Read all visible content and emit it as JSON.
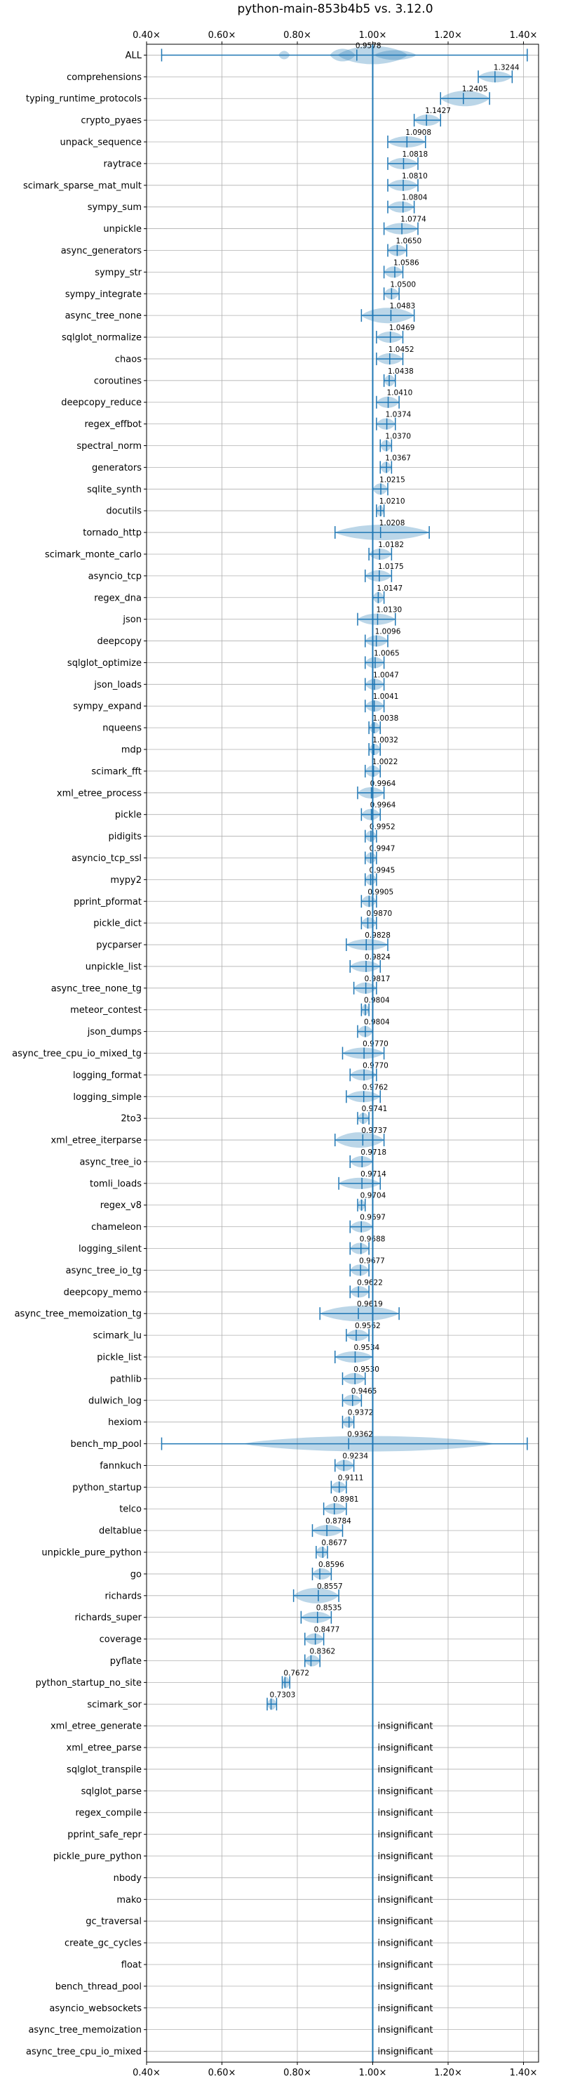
{
  "chart_data": {
    "type": "violin",
    "title": "python-main-853b4b5 vs. 3.12.0",
    "xlim": [
      0.4,
      1.44
    ],
    "xticks": [
      0.4,
      0.6,
      0.8,
      1.0,
      1.2,
      1.4
    ],
    "xtick_labels": [
      "0.40×",
      "0.60×",
      "0.80×",
      "1.00×",
      "1.20×",
      "1.40×"
    ],
    "reference_line": 1.0,
    "insignificant_text": "insignificant",
    "rows": [
      {
        "name": "ALL",
        "value": 0.9578,
        "label": "0.9578",
        "min": 0.44,
        "max": 1.41,
        "shape": "all"
      },
      {
        "name": "comprehensions",
        "value": 1.3244,
        "label": "1.3244",
        "min": 1.28,
        "max": 1.37
      },
      {
        "name": "typing_runtime_protocols",
        "value": 1.2405,
        "label": "1.2405",
        "min": 1.18,
        "max": 1.31
      },
      {
        "name": "crypto_pyaes",
        "value": 1.1427,
        "label": "1.1427",
        "min": 1.11,
        "max": 1.18
      },
      {
        "name": "unpack_sequence",
        "value": 1.0908,
        "label": "1.0908",
        "min": 1.04,
        "max": 1.14
      },
      {
        "name": "raytrace",
        "value": 1.0818,
        "label": "1.0818",
        "min": 1.04,
        "max": 1.12
      },
      {
        "name": "scimark_sparse_mat_mult",
        "value": 1.081,
        "label": "1.0810",
        "min": 1.04,
        "max": 1.12
      },
      {
        "name": "sympy_sum",
        "value": 1.0804,
        "label": "1.0804",
        "min": 1.04,
        "max": 1.11
      },
      {
        "name": "unpickle",
        "value": 1.0774,
        "label": "1.0774",
        "min": 1.03,
        "max": 1.12
      },
      {
        "name": "async_generators",
        "value": 1.065,
        "label": "1.0650",
        "min": 1.04,
        "max": 1.09
      },
      {
        "name": "sympy_str",
        "value": 1.0586,
        "label": "1.0586",
        "min": 1.03,
        "max": 1.08
      },
      {
        "name": "sympy_integrate",
        "value": 1.05,
        "label": "1.0500",
        "min": 1.03,
        "max": 1.07
      },
      {
        "name": "async_tree_none",
        "value": 1.0483,
        "label": "1.0483",
        "min": 0.97,
        "max": 1.11
      },
      {
        "name": "sqlglot_normalize",
        "value": 1.0469,
        "label": "1.0469",
        "min": 1.01,
        "max": 1.08
      },
      {
        "name": "chaos",
        "value": 1.0452,
        "label": "1.0452",
        "min": 1.01,
        "max": 1.08
      },
      {
        "name": "coroutines",
        "value": 1.0438,
        "label": "1.0438",
        "min": 1.03,
        "max": 1.06
      },
      {
        "name": "deepcopy_reduce",
        "value": 1.041,
        "label": "1.0410",
        "min": 1.01,
        "max": 1.07
      },
      {
        "name": "regex_effbot",
        "value": 1.0374,
        "label": "1.0374",
        "min": 1.01,
        "max": 1.06
      },
      {
        "name": "spectral_norm",
        "value": 1.037,
        "label": "1.0370",
        "min": 1.02,
        "max": 1.05
      },
      {
        "name": "generators",
        "value": 1.0367,
        "label": "1.0367",
        "min": 1.02,
        "max": 1.05
      },
      {
        "name": "sqlite_synth",
        "value": 1.0215,
        "label": "1.0215",
        "min": 1.0,
        "max": 1.04
      },
      {
        "name": "docutils",
        "value": 1.021,
        "label": "1.0210",
        "min": 1.01,
        "max": 1.03
      },
      {
        "name": "tornado_http",
        "value": 1.0208,
        "label": "1.0208",
        "min": 0.9,
        "max": 1.15
      },
      {
        "name": "scimark_monte_carlo",
        "value": 1.0182,
        "label": "1.0182",
        "min": 0.99,
        "max": 1.05
      },
      {
        "name": "asyncio_tcp",
        "value": 1.0175,
        "label": "1.0175",
        "min": 0.98,
        "max": 1.05
      },
      {
        "name": "regex_dna",
        "value": 1.0147,
        "label": "1.0147",
        "min": 1.0,
        "max": 1.03
      },
      {
        "name": "json",
        "value": 1.013,
        "label": "1.0130",
        "min": 0.96,
        "max": 1.06
      },
      {
        "name": "deepcopy",
        "value": 1.0096,
        "label": "1.0096",
        "min": 0.98,
        "max": 1.04
      },
      {
        "name": "sqlglot_optimize",
        "value": 1.0065,
        "label": "1.0065",
        "min": 0.98,
        "max": 1.03
      },
      {
        "name": "json_loads",
        "value": 1.0047,
        "label": "1.0047",
        "min": 0.98,
        "max": 1.03
      },
      {
        "name": "sympy_expand",
        "value": 1.0041,
        "label": "1.0041",
        "min": 0.98,
        "max": 1.03
      },
      {
        "name": "nqueens",
        "value": 1.0038,
        "label": "1.0038",
        "min": 0.99,
        "max": 1.02
      },
      {
        "name": "mdp",
        "value": 1.0032,
        "label": "1.0032",
        "min": 0.99,
        "max": 1.02
      },
      {
        "name": "scimark_fft",
        "value": 1.0022,
        "label": "1.0022",
        "min": 0.98,
        "max": 1.02
      },
      {
        "name": "xml_etree_process",
        "value": 0.9964,
        "label": "0.9964",
        "min": 0.96,
        "max": 1.03
      },
      {
        "name": "pickle",
        "value": 0.9964,
        "label": "0.9964",
        "min": 0.97,
        "max": 1.02
      },
      {
        "name": "pidigits",
        "value": 0.9952,
        "label": "0.9952",
        "min": 0.98,
        "max": 1.01
      },
      {
        "name": "asyncio_tcp_ssl",
        "value": 0.9947,
        "label": "0.9947",
        "min": 0.98,
        "max": 1.01
      },
      {
        "name": "mypy2",
        "value": 0.9945,
        "label": "0.9945",
        "min": 0.98,
        "max": 1.01
      },
      {
        "name": "pprint_pformat",
        "value": 0.9905,
        "label": "0.9905",
        "min": 0.97,
        "max": 1.01
      },
      {
        "name": "pickle_dict",
        "value": 0.987,
        "label": "0.9870",
        "min": 0.97,
        "max": 1.01
      },
      {
        "name": "pycparser",
        "value": 0.9828,
        "label": "0.9828",
        "min": 0.93,
        "max": 1.04
      },
      {
        "name": "unpickle_list",
        "value": 0.9824,
        "label": "0.9824",
        "min": 0.94,
        "max": 1.02
      },
      {
        "name": "async_tree_none_tg",
        "value": 0.9817,
        "label": "0.9817",
        "min": 0.95,
        "max": 1.01
      },
      {
        "name": "meteor_contest",
        "value": 0.9804,
        "label": "0.9804",
        "min": 0.97,
        "max": 0.99
      },
      {
        "name": "json_dumps",
        "value": 0.9804,
        "label": "0.9804",
        "min": 0.96,
        "max": 1.0
      },
      {
        "name": "async_tree_cpu_io_mixed_tg",
        "value": 0.977,
        "label": "0.9770",
        "min": 0.92,
        "max": 1.03
      },
      {
        "name": "logging_format",
        "value": 0.977,
        "label": "0.9770",
        "min": 0.94,
        "max": 1.01
      },
      {
        "name": "logging_simple",
        "value": 0.9762,
        "label": "0.9762",
        "min": 0.93,
        "max": 1.02
      },
      {
        "name": "2to3",
        "value": 0.9741,
        "label": "0.9741",
        "min": 0.96,
        "max": 0.99
      },
      {
        "name": "xml_etree_iterparse",
        "value": 0.9737,
        "label": "0.9737",
        "min": 0.9,
        "max": 1.03
      },
      {
        "name": "async_tree_io",
        "value": 0.9718,
        "label": "0.9718",
        "min": 0.94,
        "max": 1.0
      },
      {
        "name": "tomli_loads",
        "value": 0.9714,
        "label": "0.9714",
        "min": 0.91,
        "max": 1.02
      },
      {
        "name": "regex_v8",
        "value": 0.9704,
        "label": "0.9704",
        "min": 0.96,
        "max": 0.98
      },
      {
        "name": "chameleon",
        "value": 0.9697,
        "label": "0.9697",
        "min": 0.94,
        "max": 1.0
      },
      {
        "name": "logging_silent",
        "value": 0.9688,
        "label": "0.9688",
        "min": 0.94,
        "max": 0.99
      },
      {
        "name": "async_tree_io_tg",
        "value": 0.9677,
        "label": "0.9677",
        "min": 0.94,
        "max": 0.99
      },
      {
        "name": "deepcopy_memo",
        "value": 0.9622,
        "label": "0.9622",
        "min": 0.94,
        "max": 0.99
      },
      {
        "name": "async_tree_memoization_tg",
        "value": 0.9619,
        "label": "0.9619",
        "min": 0.86,
        "max": 1.07
      },
      {
        "name": "scimark_lu",
        "value": 0.9562,
        "label": "0.9562",
        "min": 0.93,
        "max": 0.99
      },
      {
        "name": "pickle_list",
        "value": 0.9534,
        "label": "0.9534",
        "min": 0.9,
        "max": 1.0
      },
      {
        "name": "pathlib",
        "value": 0.953,
        "label": "0.9530",
        "min": 0.92,
        "max": 0.98
      },
      {
        "name": "dulwich_log",
        "value": 0.9465,
        "label": "0.9465",
        "min": 0.92,
        "max": 0.97
      },
      {
        "name": "hexiom",
        "value": 0.9372,
        "label": "0.9372",
        "min": 0.92,
        "max": 0.95
      },
      {
        "name": "bench_mp_pool",
        "value": 0.9362,
        "label": "0.9362",
        "min": 0.44,
        "max": 1.41,
        "shape": "spread"
      },
      {
        "name": "fannkuch",
        "value": 0.9234,
        "label": "0.9234",
        "min": 0.9,
        "max": 0.95
      },
      {
        "name": "python_startup",
        "value": 0.9111,
        "label": "0.9111",
        "min": 0.89,
        "max": 0.93
      },
      {
        "name": "telco",
        "value": 0.8981,
        "label": "0.8981",
        "min": 0.87,
        "max": 0.93
      },
      {
        "name": "deltablue",
        "value": 0.8784,
        "label": "0.8784",
        "min": 0.84,
        "max": 0.92
      },
      {
        "name": "unpickle_pure_python",
        "value": 0.8677,
        "label": "0.8677",
        "min": 0.85,
        "max": 0.88
      },
      {
        "name": "go",
        "value": 0.8596,
        "label": "0.8596",
        "min": 0.84,
        "max": 0.89
      },
      {
        "name": "richards",
        "value": 0.8557,
        "label": "0.8557",
        "min": 0.79,
        "max": 0.91
      },
      {
        "name": "richards_super",
        "value": 0.8535,
        "label": "0.8535",
        "min": 0.81,
        "max": 0.89
      },
      {
        "name": "coverage",
        "value": 0.8477,
        "label": "0.8477",
        "min": 0.82,
        "max": 0.87
      },
      {
        "name": "pyflate",
        "value": 0.8362,
        "label": "0.8362",
        "min": 0.82,
        "max": 0.86
      },
      {
        "name": "python_startup_no_site",
        "value": 0.7672,
        "label": "0.7672",
        "min": 0.76,
        "max": 0.78
      },
      {
        "name": "scimark_sor",
        "value": 0.7303,
        "label": "0.7303",
        "min": 0.72,
        "max": 0.745
      },
      {
        "name": "xml_etree_generate",
        "insignificant": true
      },
      {
        "name": "xml_etree_parse",
        "insignificant": true
      },
      {
        "name": "sqlglot_transpile",
        "insignificant": true
      },
      {
        "name": "sqlglot_parse",
        "insignificant": true
      },
      {
        "name": "regex_compile",
        "insignificant": true
      },
      {
        "name": "pprint_safe_repr",
        "insignificant": true
      },
      {
        "name": "pickle_pure_python",
        "insignificant": true
      },
      {
        "name": "nbody",
        "insignificant": true
      },
      {
        "name": "mako",
        "insignificant": true
      },
      {
        "name": "gc_traversal",
        "insignificant": true
      },
      {
        "name": "create_gc_cycles",
        "insignificant": true
      },
      {
        "name": "float",
        "insignificant": true
      },
      {
        "name": "bench_thread_pool",
        "insignificant": true
      },
      {
        "name": "asyncio_websockets",
        "insignificant": true
      },
      {
        "name": "async_tree_memoization",
        "insignificant": true
      },
      {
        "name": "async_tree_cpu_io_mixed",
        "insignificant": true
      }
    ]
  }
}
